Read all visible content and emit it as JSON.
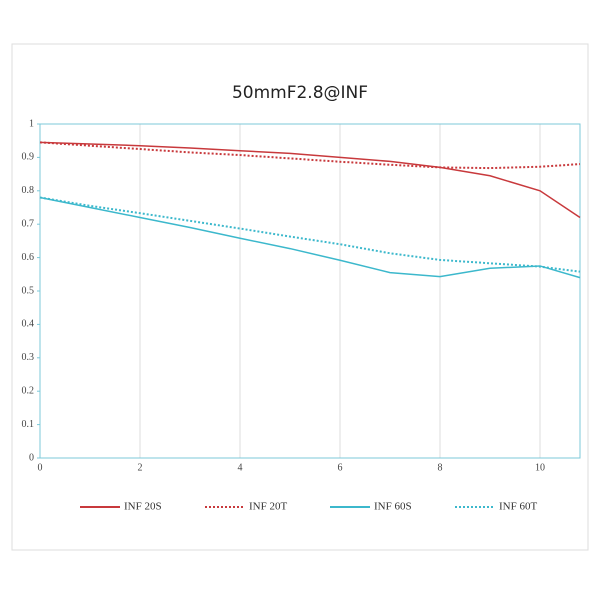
{
  "chart_data": {
    "type": "line",
    "title": "50mmF2.8@INF",
    "x": [
      0,
      1,
      2,
      3,
      4,
      5,
      6,
      7,
      8,
      9,
      10,
      10.8
    ],
    "series": [
      {
        "name": "INF 20S",
        "color": "#c8393c",
        "style": "solid",
        "values": [
          0.945,
          0.94,
          0.935,
          0.928,
          0.92,
          0.912,
          0.9,
          0.888,
          0.87,
          0.845,
          0.8,
          0.72
        ]
      },
      {
        "name": "INF 20T",
        "color": "#c8393c",
        "style": "dotted",
        "values": [
          0.945,
          0.935,
          0.925,
          0.915,
          0.907,
          0.897,
          0.887,
          0.878,
          0.87,
          0.868,
          0.872,
          0.88
        ]
      },
      {
        "name": "INF 60S",
        "color": "#3cb8cc",
        "style": "solid",
        "values": [
          0.78,
          0.75,
          0.72,
          0.69,
          0.658,
          0.627,
          0.592,
          0.555,
          0.543,
          0.568,
          0.575,
          0.54
        ]
      },
      {
        "name": "INF 60T",
        "color": "#3cb8cc",
        "style": "dotted",
        "values": [
          0.78,
          0.755,
          0.733,
          0.71,
          0.687,
          0.663,
          0.64,
          0.613,
          0.593,
          0.583,
          0.573,
          0.558
        ]
      }
    ],
    "xlim": [
      0,
      10.8
    ],
    "ylim": [
      0,
      1
    ],
    "xticks": [
      0,
      2,
      4,
      6,
      8,
      10
    ],
    "yticks": [
      0,
      0.1,
      0.2,
      0.3,
      0.4,
      0.5,
      0.6,
      0.7,
      0.8,
      0.9,
      1
    ],
    "grid": "x",
    "legend": "bottom"
  }
}
